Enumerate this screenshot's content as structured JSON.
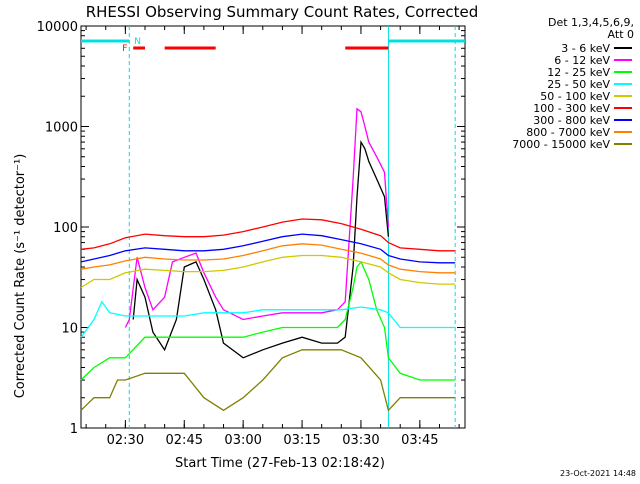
{
  "chart_data": {
    "type": "line",
    "title": "RHESSI Observing Summary Count Rates, Corrected",
    "xlabel": "Start Time (27-Feb-13 02:18:42)",
    "ylabel": "Corrected Count Rate (s⁻¹ detector⁻¹)",
    "y_scale": "log",
    "ylim": [
      1,
      10000
    ],
    "xlim": [
      "02:18:42",
      "03:56:30"
    ],
    "x_ticks": [
      "02:30",
      "02:45",
      "03:00",
      "03:15",
      "03:30",
      "03:45"
    ],
    "y_ticks": [
      "1",
      "10",
      "100",
      "1000",
      "10000"
    ],
    "legend_header": [
      "Det 1,3,4,5,6,9,",
      "Att 0"
    ],
    "legend_position": "right",
    "footer_date": "23-Oct-2021 14:48",
    "markers": {
      "night": {
        "label": "N",
        "color": "#00e0e0",
        "spans": [
          [
            "02:18:42",
            "02:31"
          ],
          [
            "03:37",
            "03:56:30"
          ]
        ]
      },
      "flare": {
        "label": "F",
        "color": "#ff0000",
        "spans": [
          [
            "02:32",
            "02:35"
          ],
          [
            "02:40",
            "02:53"
          ],
          [
            "03:26",
            "03:37"
          ]
        ]
      },
      "vlines": [
        "02:31",
        "03:37",
        "03:54"
      ]
    },
    "series": [
      {
        "name": "3 - 6 keV",
        "color": "#000000",
        "x": [
          "02:18:42",
          "02:26",
          "02:30",
          "02:32",
          "02:33",
          "02:35",
          "02:37",
          "02:40",
          "02:43",
          "02:45",
          "02:48",
          "02:50",
          "02:53",
          "02:55",
          "03:00",
          "03:05",
          "03:10",
          "03:15",
          "03:20",
          "03:24",
          "03:26",
          "03:28",
          "03:29",
          "03:30",
          "03:31",
          "03:32",
          "03:34",
          "03:36",
          "03:37"
        ],
        "y": [
          null,
          null,
          null,
          12,
          30,
          20,
          9,
          6,
          12,
          40,
          45,
          30,
          15,
          7,
          5,
          6,
          7,
          8,
          7,
          7,
          8,
          40,
          200,
          700,
          600,
          450,
          300,
          200,
          80
        ]
      },
      {
        "name": "6 - 12 keV",
        "color": "#ff00ff",
        "x": [
          "02:18:42",
          "02:28",
          "02:30",
          "02:31",
          "02:33",
          "02:35",
          "02:37",
          "02:40",
          "02:42",
          "02:45",
          "02:48",
          "02:50",
          "02:53",
          "02:55",
          "03:00",
          "03:05",
          "03:10",
          "03:15",
          "03:20",
          "03:24",
          "03:26",
          "03:28",
          "03:29",
          "03:30",
          "03:31",
          "03:32",
          "03:34",
          "03:36",
          "03:37"
        ],
        "y": [
          null,
          null,
          10,
          12,
          50,
          25,
          15,
          20,
          45,
          50,
          55,
          35,
          20,
          15,
          12,
          13,
          14,
          14,
          14,
          15,
          18,
          300,
          1500,
          1400,
          1000,
          700,
          500,
          350,
          100
        ]
      },
      {
        "name": "12 - 25 keV",
        "color": "#00ff00",
        "x": [
          "02:18:42",
          "02:22",
          "02:26",
          "02:30",
          "02:35",
          "02:40",
          "02:45",
          "02:50",
          "02:55",
          "03:00",
          "03:05",
          "03:10",
          "03:15",
          "03:20",
          "03:24",
          "03:26",
          "03:28",
          "03:29",
          "03:30",
          "03:32",
          "03:34",
          "03:36",
          "03:37",
          "03:40",
          "03:45",
          "03:50",
          "03:54"
        ],
        "y": [
          3,
          4,
          5,
          5,
          8,
          8,
          8,
          8,
          8,
          8,
          9,
          10,
          10,
          10,
          10,
          12,
          25,
          40,
          45,
          30,
          15,
          10,
          5,
          3.5,
          3,
          3,
          3
        ]
      },
      {
        "name": "25 - 50 keV",
        "color": "#00ffff",
        "x": [
          "02:18:42",
          "02:22",
          "02:24",
          "02:26",
          "02:30",
          "02:35",
          "02:40",
          "02:45",
          "02:50",
          "02:55",
          "03:00",
          "03:05",
          "03:10",
          "03:15",
          "03:20",
          "03:25",
          "03:30",
          "03:35",
          "03:37",
          "03:40",
          "03:45",
          "03:50",
          "03:54"
        ],
        "y": [
          8,
          12,
          18,
          14,
          13,
          13,
          13,
          13,
          14,
          14,
          14,
          15,
          15,
          15,
          15,
          15,
          16,
          15,
          14,
          10,
          10,
          10,
          10
        ]
      },
      {
        "name": "50 - 100 keV",
        "color": "#d0c800",
        "x": [
          "02:18:42",
          "02:22",
          "02:26",
          "02:30",
          "02:35",
          "02:40",
          "02:45",
          "02:50",
          "02:55",
          "03:00",
          "03:05",
          "03:10",
          "03:15",
          "03:20",
          "03:25",
          "03:30",
          "03:35",
          "03:37",
          "03:40",
          "03:45",
          "03:50",
          "03:54"
        ],
        "y": [
          25,
          30,
          30,
          35,
          38,
          37,
          36,
          36,
          37,
          40,
          45,
          50,
          52,
          52,
          50,
          45,
          40,
          35,
          30,
          28,
          27,
          27
        ]
      },
      {
        "name": "100 - 300 keV",
        "color": "#ff0000",
        "x": [
          "02:18:42",
          "02:22",
          "02:26",
          "02:30",
          "02:35",
          "02:40",
          "02:45",
          "02:50",
          "02:55",
          "03:00",
          "03:05",
          "03:10",
          "03:15",
          "03:20",
          "03:25",
          "03:30",
          "03:35",
          "03:37",
          "03:40",
          "03:45",
          "03:50",
          "03:54"
        ],
        "y": [
          60,
          62,
          68,
          78,
          85,
          82,
          80,
          80,
          83,
          90,
          100,
          112,
          120,
          118,
          108,
          95,
          82,
          70,
          62,
          60,
          58,
          58
        ]
      },
      {
        "name": "300 - 800 keV",
        "color": "#0000ff",
        "x": [
          "02:18:42",
          "02:22",
          "02:26",
          "02:30",
          "02:35",
          "02:40",
          "02:45",
          "02:50",
          "02:55",
          "03:00",
          "03:05",
          "03:10",
          "03:15",
          "03:20",
          "03:25",
          "03:30",
          "03:35",
          "03:37",
          "03:40",
          "03:45",
          "03:50",
          "03:54"
        ],
        "y": [
          45,
          48,
          52,
          58,
          62,
          60,
          58,
          58,
          60,
          65,
          72,
          80,
          85,
          82,
          75,
          68,
          60,
          52,
          48,
          45,
          44,
          44
        ]
      },
      {
        "name": "800 - 7000 keV",
        "color": "#ff8000",
        "x": [
          "02:18:42",
          "02:22",
          "02:26",
          "02:30",
          "02:35",
          "02:40",
          "02:45",
          "02:50",
          "02:55",
          "03:00",
          "03:05",
          "03:10",
          "03:15",
          "03:20",
          "03:25",
          "03:30",
          "03:35",
          "03:37",
          "03:40",
          "03:45",
          "03:50",
          "03:54"
        ],
        "y": [
          38,
          40,
          42,
          46,
          50,
          48,
          47,
          47,
          48,
          52,
          58,
          65,
          68,
          66,
          60,
          55,
          48,
          42,
          38,
          36,
          35,
          35
        ]
      },
      {
        "name": "7000 - 15000 keV",
        "color": "#808000",
        "x": [
          "02:18:42",
          "02:22",
          "02:26",
          "02:28",
          "02:30",
          "02:35",
          "02:40",
          "02:45",
          "02:50",
          "02:55",
          "03:00",
          "03:05",
          "03:10",
          "03:15",
          "03:20",
          "03:25",
          "03:30",
          "03:35",
          "03:37",
          "03:40",
          "03:45",
          "03:50",
          "03:54"
        ],
        "y": [
          1.5,
          2,
          2,
          3,
          3,
          3.5,
          3.5,
          3.5,
          2,
          1.5,
          2,
          3,
          5,
          6,
          6,
          6,
          5,
          3,
          1.5,
          2,
          2,
          2,
          2
        ]
      }
    ]
  }
}
